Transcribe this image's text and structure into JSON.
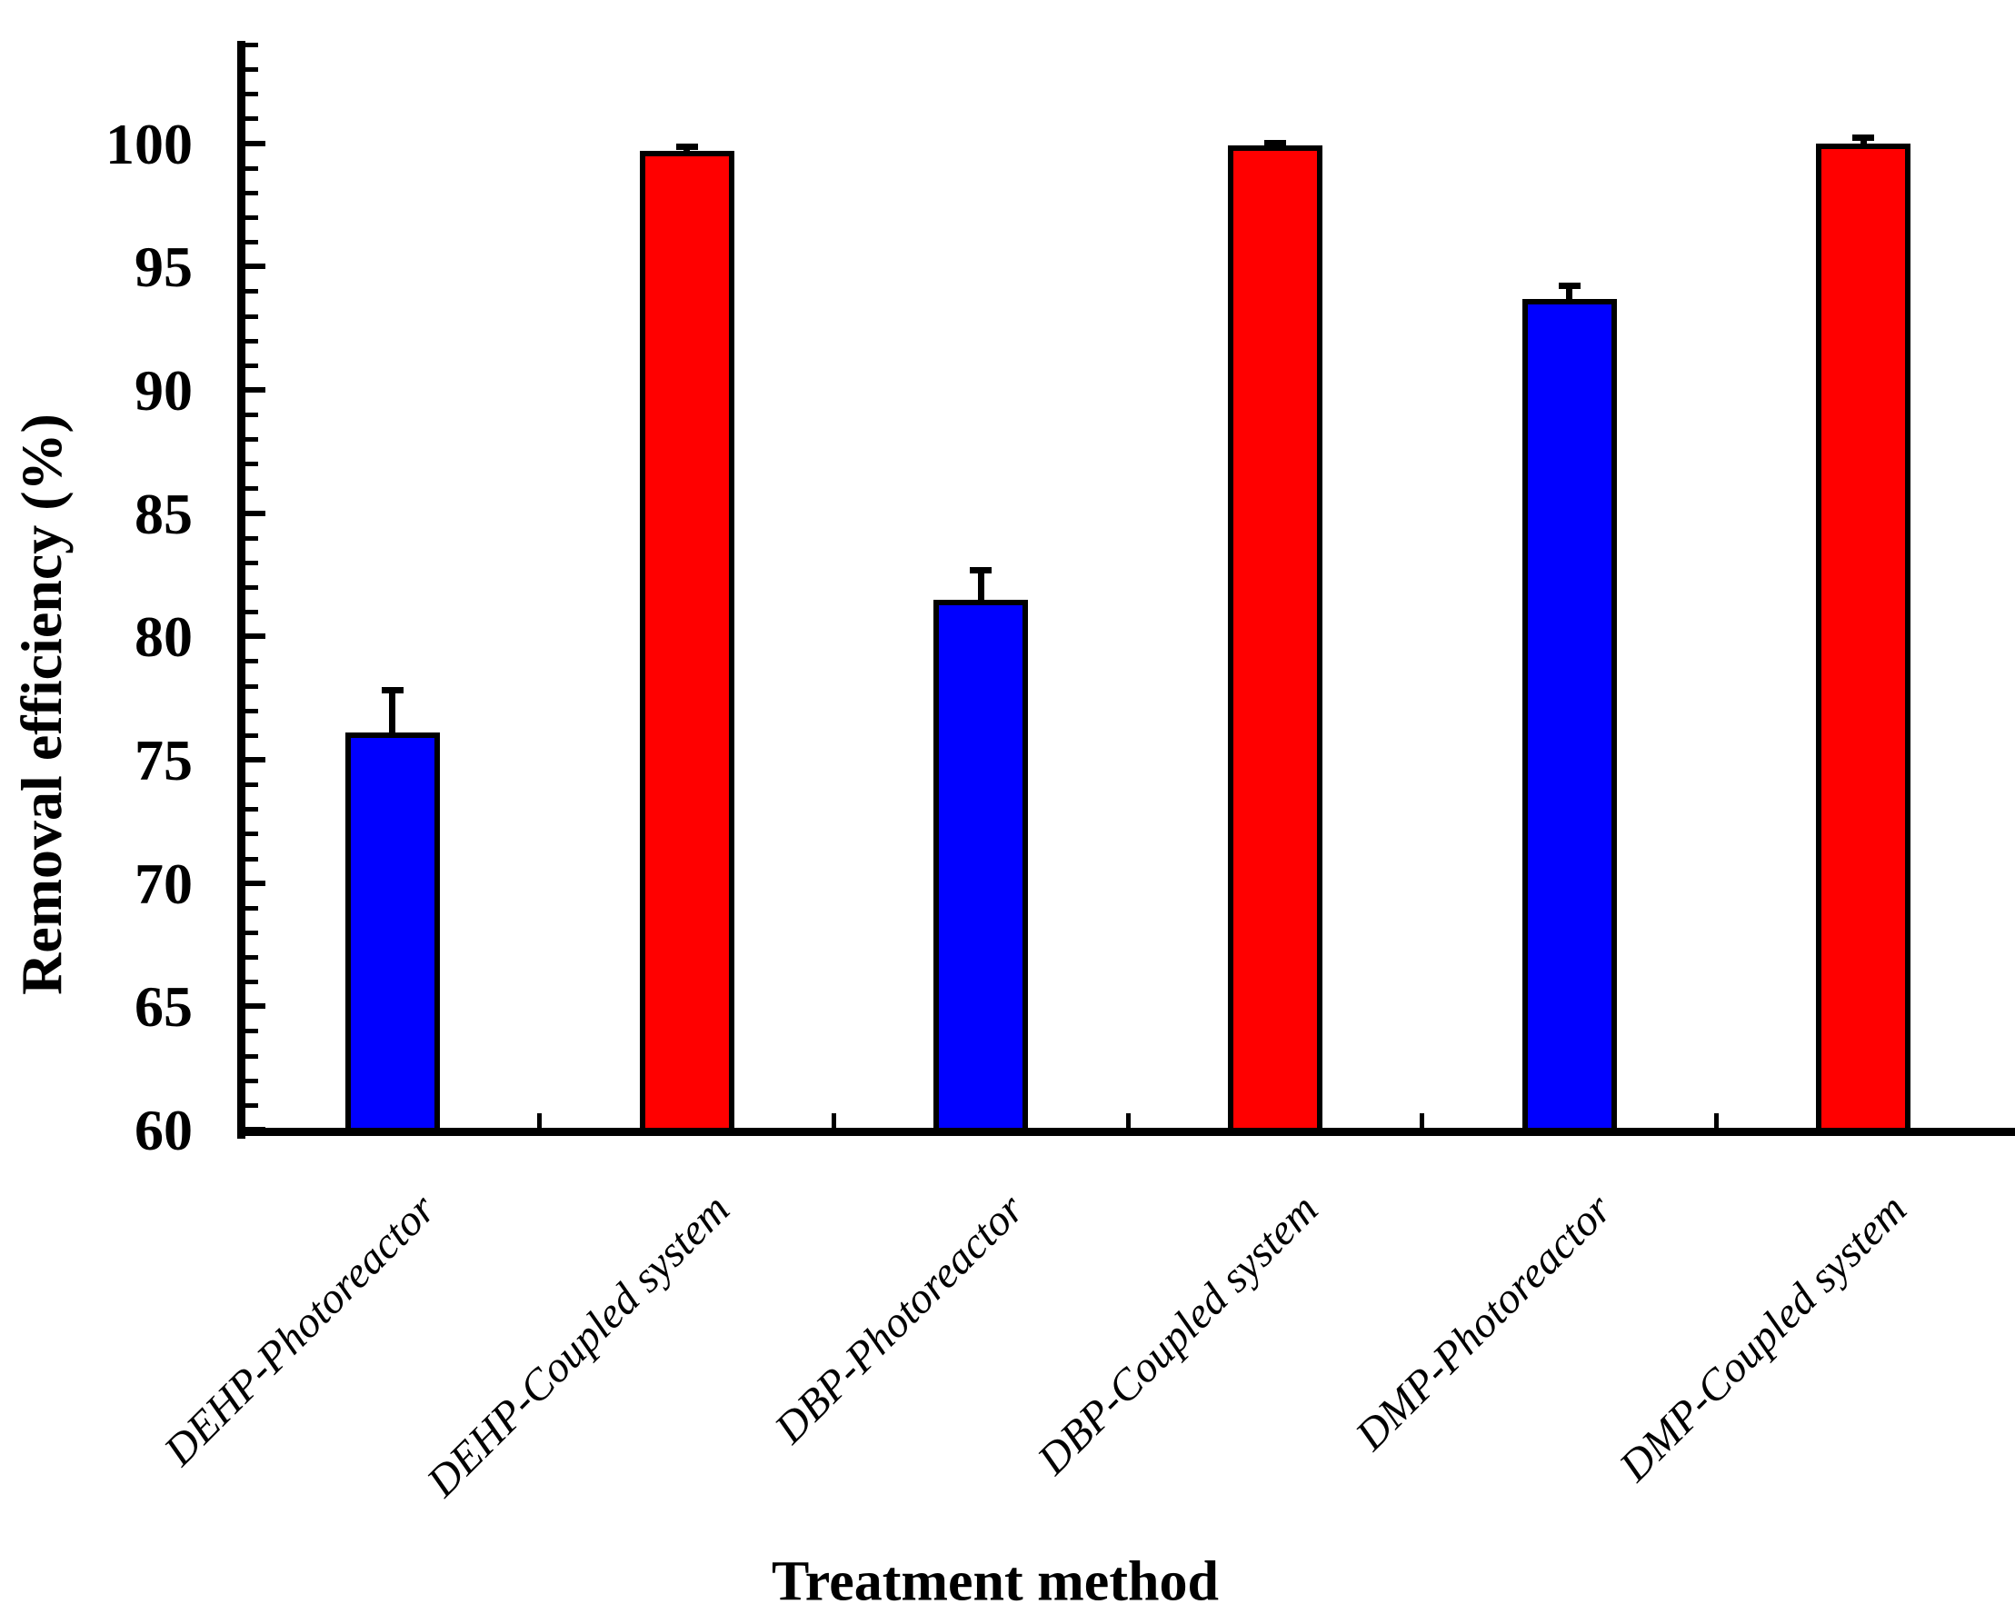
{
  "chart_data": {
    "type": "bar",
    "title": "",
    "xlabel": "Treatment method",
    "ylabel": "Removal efficiency (%)",
    "ylim": [
      60,
      104
    ],
    "y_major_ticks": [
      60,
      65,
      70,
      75,
      80,
      85,
      90,
      95,
      100
    ],
    "y_tick_labels": [
      "60",
      "65",
      "70",
      "75",
      "80",
      "85",
      "90",
      "95",
      "100"
    ],
    "y_minor_step": 1,
    "grid": false,
    "legend": null,
    "categories": [
      "DEHP-Photoreactor",
      "DEHP-Coupled system",
      "DBP-Photoreactor",
      "DBP-Coupled system",
      "DMP-Photoreactor",
      "DMP-Coupled system"
    ],
    "values": [
      76.1,
      99.7,
      81.5,
      99.9,
      93.7,
      100.0
    ],
    "errors_plus": [
      1.7,
      0.15,
      1.15,
      0.1,
      0.5,
      0.2
    ],
    "bar_colors": [
      "#0000FF",
      "#FF0000",
      "#0000FF",
      "#FF0000",
      "#0000FF",
      "#FF0000"
    ],
    "bar_border_color": "#000000",
    "axis_color": "#000000"
  }
}
